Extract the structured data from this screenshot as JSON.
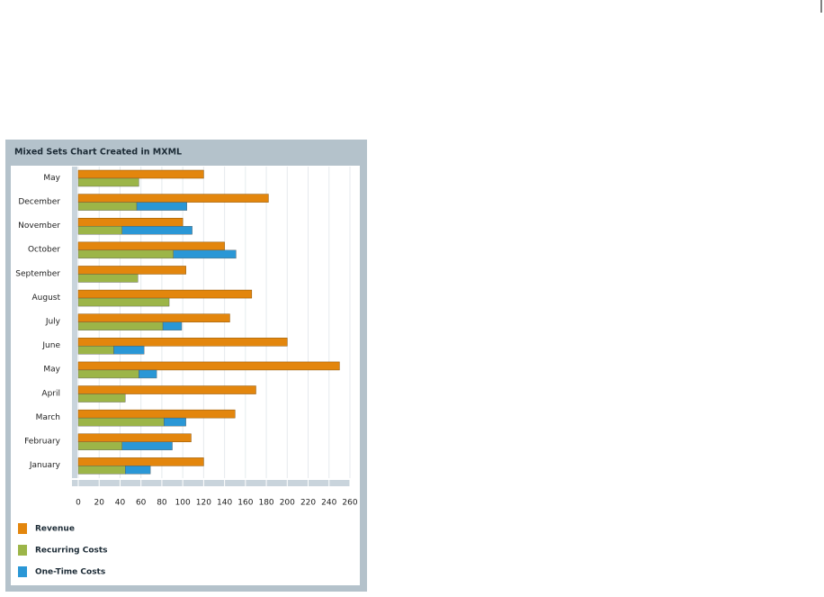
{
  "chart_data": {
    "type": "bar",
    "orientation": "horizontal",
    "stacked": [
      "Recurring Costs",
      "One-Time Costs"
    ],
    "title": "Mixed Sets Chart Created in MXML",
    "categories": [
      "January",
      "February",
      "March",
      "April",
      "May",
      "June",
      "July",
      "August",
      "September",
      "October",
      "November",
      "December",
      "May"
    ],
    "series": [
      {
        "name": "Revenue",
        "color": "#e3860d",
        "values": [
          120,
          108,
          150,
          170,
          250,
          200,
          145,
          166,
          103,
          140,
          100,
          182,
          120
        ]
      },
      {
        "name": "Recurring Costs",
        "color": "#9cb548",
        "values": [
          45,
          42,
          82,
          45,
          58,
          34,
          81,
          87,
          57,
          91,
          42,
          56,
          58
        ]
      },
      {
        "name": "One-Time Costs",
        "color": "#2a97d6",
        "values": [
          24,
          48,
          21,
          null,
          17,
          29,
          18,
          null,
          null,
          60,
          67,
          48,
          null
        ]
      }
    ],
    "xlim": [
      0,
      260
    ],
    "xticks": [
      0,
      20,
      40,
      60,
      80,
      100,
      120,
      140,
      160,
      180,
      200,
      220,
      240,
      260
    ],
    "grid": true,
    "legend": "bottom"
  }
}
